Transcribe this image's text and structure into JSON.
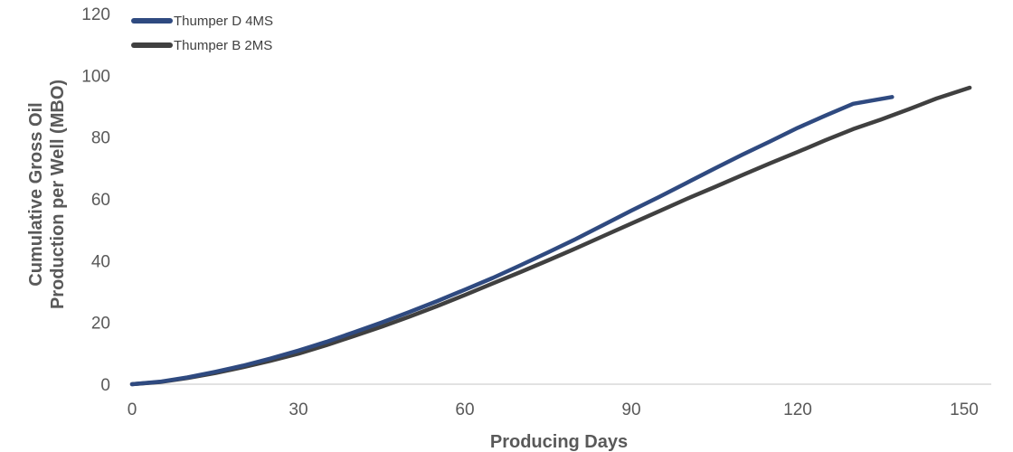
{
  "chart_data": {
    "type": "line",
    "title": "",
    "xlabel": "Producing Days",
    "ylabel_lines": [
      "Cumulative Gross Oil",
      "Production per Well (MBO)"
    ],
    "xlim": [
      0,
      150
    ],
    "ylim": [
      0,
      120
    ],
    "xticks": [
      0,
      30,
      60,
      90,
      120,
      150
    ],
    "yticks": [
      0,
      20,
      40,
      60,
      80,
      100,
      120
    ],
    "grid": false,
    "legend_position": "top-left",
    "series": [
      {
        "name": "Thumper D 4MS",
        "color": "#2F4A80",
        "x": [
          0,
          5,
          10,
          15,
          20,
          25,
          30,
          35,
          40,
          45,
          50,
          55,
          60,
          65,
          70,
          75,
          80,
          85,
          90,
          95,
          100,
          105,
          110,
          115,
          120,
          125,
          130,
          137
        ],
        "y": [
          0,
          0.8,
          2.2,
          4.0,
          6.0,
          8.3,
          10.9,
          13.7,
          16.8,
          20.0,
          23.4,
          26.9,
          30.6,
          34.4,
          38.5,
          42.7,
          47.0,
          51.6,
          56.2,
          60.6,
          65.2,
          69.8,
          74.3,
          78.6,
          83.0,
          87.0,
          90.8,
          93.0
        ]
      },
      {
        "name": "Thumper B 2MS",
        "color": "#404040",
        "x": [
          0,
          5,
          10,
          15,
          20,
          25,
          30,
          35,
          40,
          45,
          50,
          55,
          60,
          65,
          70,
          75,
          80,
          85,
          90,
          95,
          100,
          105,
          110,
          115,
          120,
          125,
          130,
          135,
          140,
          145,
          151
        ],
        "y": [
          0,
          0.7,
          2.0,
          3.6,
          5.5,
          7.6,
          9.9,
          12.6,
          15.6,
          18.6,
          21.9,
          25.3,
          28.9,
          32.6,
          36.3,
          40.1,
          44.0,
          48.0,
          52.0,
          56.0,
          60.0,
          63.8,
          67.7,
          71.5,
          75.2,
          79.0,
          82.6,
          85.7,
          89.0,
          92.5,
          96.0
        ]
      }
    ]
  }
}
